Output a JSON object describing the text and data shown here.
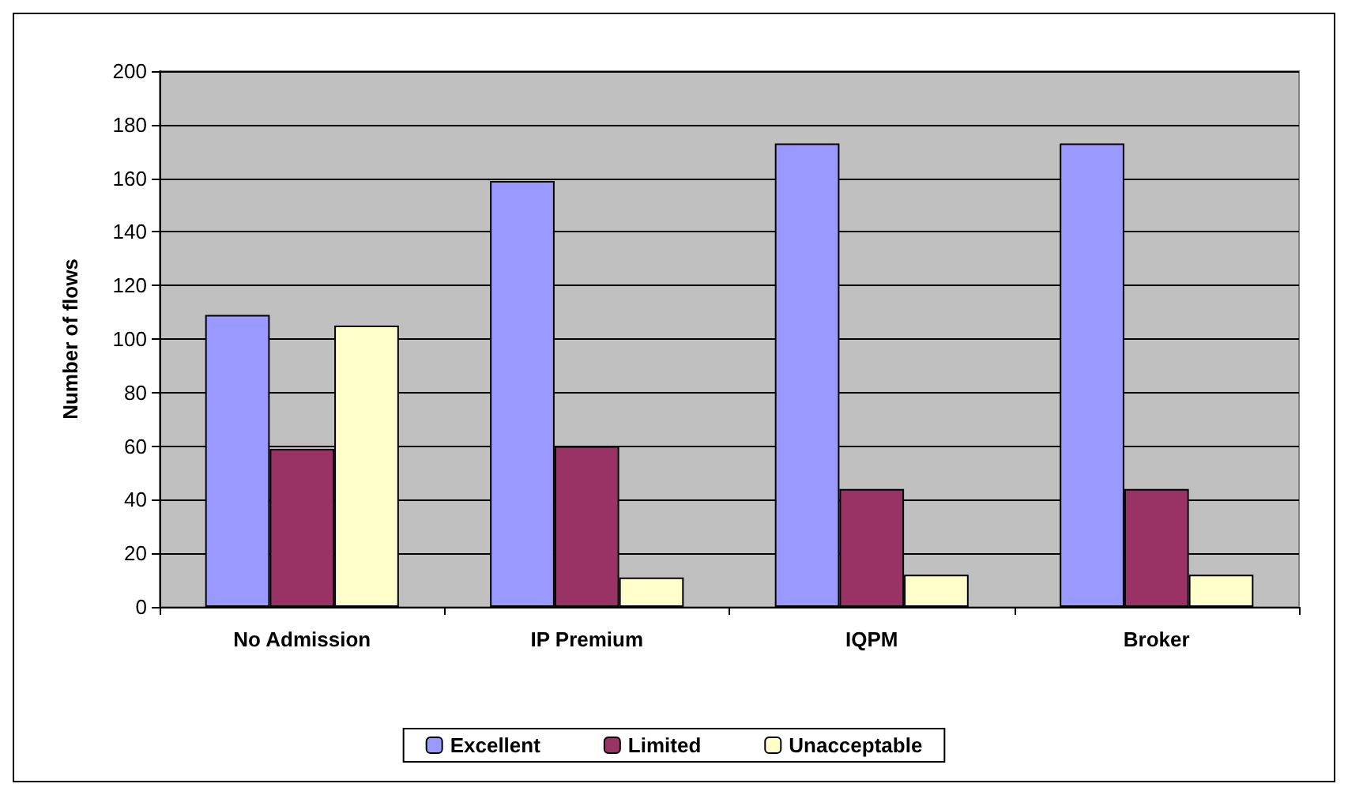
{
  "chart_data": {
    "type": "bar",
    "ylabel": "Number of flows",
    "categories": [
      "No Admission",
      "IP Premium",
      "IQPM",
      "Broker"
    ],
    "series": [
      {
        "name": "Excellent",
        "color": "#9999ff",
        "values": [
          109,
          159,
          173,
          173
        ]
      },
      {
        "name": "Limited",
        "color": "#993366",
        "values": [
          59,
          60,
          44,
          44
        ]
      },
      {
        "name": "Unacceptable",
        "color": "#ffffcc",
        "values": [
          105,
          11,
          12,
          12
        ]
      }
    ],
    "ylim": [
      0,
      200
    ],
    "yticks": [
      0,
      20,
      40,
      60,
      80,
      100,
      120,
      140,
      160,
      180,
      200
    ],
    "grid": "y",
    "legend": "bottom"
  }
}
